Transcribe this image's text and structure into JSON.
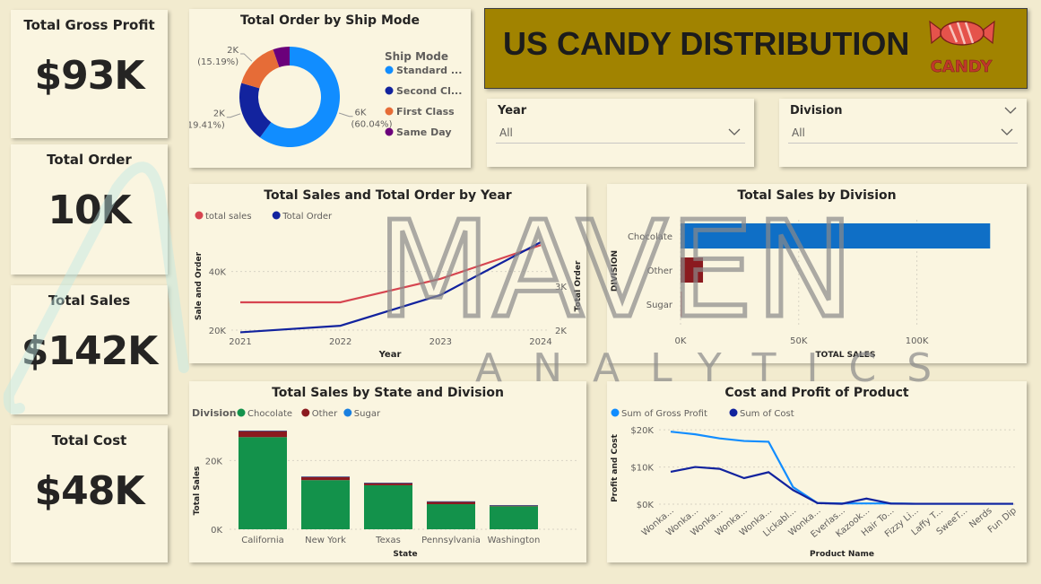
{
  "banner": {
    "title": "US CANDY DISTRIBUTION",
    "logo_text": "CANDY",
    "background": "#a18300"
  },
  "kpis": [
    {
      "title": "Total Gross Profit",
      "value": "$93K"
    },
    {
      "title": "Total Order",
      "value": "10K"
    },
    {
      "title": "Total Sales",
      "value": "$142K"
    },
    {
      "title": "Total Cost",
      "value": "$48K"
    }
  ],
  "slicers": {
    "year": {
      "title": "Year",
      "value": "All"
    },
    "division": {
      "title": "Division",
      "value": "All"
    }
  },
  "watermark": {
    "word1": "MAVEN",
    "word2": "ANALYTICS"
  },
  "colors": {
    "standard": "#118dff",
    "second": "#12239e",
    "first": "#e66c37",
    "sameday": "#6b007b",
    "sales_line": "#d64550",
    "order_line": "#12239e",
    "chocolate": "#13924b",
    "other": "#8b1a1f",
    "sugar": "#1a80e0",
    "gross_profit": "#118dff",
    "cost": "#12239e"
  },
  "chart_data": [
    {
      "id": "ship_mode",
      "type": "pie",
      "donut": true,
      "title": "Total Order by Ship Mode",
      "legend_title": "Ship Mode",
      "legend_position": "right",
      "slices": [
        {
          "name": "Standard ...",
          "value": 6000,
          "percent": 60.04,
          "label": "6K",
          "pct_label": "(60.04%)"
        },
        {
          "name": "Second Cl...",
          "value": 2000,
          "percent": 19.41,
          "label": "2K",
          "pct_label": "(19.41%)"
        },
        {
          "name": "First Class",
          "value": 1500,
          "percent": 15.19,
          "label": "2K",
          "pct_label": "(15.19%)"
        },
        {
          "name": "Same Day",
          "value": 500,
          "percent": 5.36,
          "label": "",
          "pct_label": ""
        }
      ]
    },
    {
      "id": "sales_order_year",
      "type": "line",
      "title": "Total Sales and Total Order by Year",
      "xlabel": "Year",
      "ylabel": "Sale and Order",
      "y2label": "Total Order",
      "legend_position": "top-left",
      "x": [
        "2021",
        "2022",
        "2023",
        "2024"
      ],
      "series": [
        {
          "name": "total sales",
          "axis": "left",
          "values": [
            29500,
            29500,
            37500,
            49000
          ]
        },
        {
          "name": "Total Order",
          "axis": "right",
          "values": [
            1950,
            2100,
            2800,
            4000
          ]
        }
      ],
      "y_ticks": [
        {
          "value": 20000,
          "label": "20K"
        },
        {
          "value": 40000,
          "label": "40K"
        }
      ],
      "y2_ticks": [
        {
          "value": 2000,
          "label": "2K"
        },
        {
          "value": 3000,
          "label": "3K"
        }
      ],
      "ylim": [
        20000,
        50000
      ],
      "y2lim": [
        2000,
        4000
      ]
    },
    {
      "id": "sales_division",
      "type": "bar",
      "orientation": "horizontal",
      "title": "Total Sales by Division",
      "xlabel": "TOTAL SALES",
      "ylabel": "DIVISION",
      "categories": [
        "Chocolate",
        "Other",
        "Sugar"
      ],
      "values": [
        131000,
        9500,
        300
      ],
      "x_ticks": [
        {
          "value": 0,
          "label": "0K"
        },
        {
          "value": 50000,
          "label": "50K"
        },
        {
          "value": 100000,
          "label": "100K"
        }
      ],
      "xlim": [
        0,
        140000
      ]
    },
    {
      "id": "sales_state_division",
      "type": "bar",
      "stacked": true,
      "title": "Total Sales by State and Division",
      "legend_title": "Division",
      "legend_position": "top-left",
      "xlabel": "State",
      "ylabel": "Total Sales",
      "categories": [
        "California",
        "New York",
        "Texas",
        "Pennsylvania",
        "Washington"
      ],
      "series": [
        {
          "name": "Chocolate",
          "values": [
            26800,
            14300,
            12800,
            7300,
            6700
          ]
        },
        {
          "name": "Other",
          "values": [
            1800,
            1000,
            700,
            800,
            300
          ]
        },
        {
          "name": "Sugar",
          "values": [
            100,
            50,
            50,
            40,
            30
          ]
        }
      ],
      "y_ticks": [
        {
          "value": 0,
          "label": "0K"
        },
        {
          "value": 20000,
          "label": "20K"
        }
      ],
      "ylim": [
        0,
        30000
      ]
    },
    {
      "id": "cost_profit_product",
      "type": "line",
      "title": "Cost and Profit of Product",
      "xlabel": "Product Name",
      "ylabel": "Profit and Cost",
      "legend_position": "top-left",
      "x": [
        "Wonka...",
        "Wonka...",
        "Wonka...",
        "Wonka...",
        "Wonka...",
        "Lickabl...",
        "Wonka...",
        "Everlas...",
        "Kazook...",
        "Hair To...",
        "Fizzy Li...",
        "Laffy T...",
        "SweeT...",
        "Nerds",
        "Fun Dip"
      ],
      "series": [
        {
          "name": "Sum of Gross Profit",
          "values": [
            19500,
            18800,
            17700,
            17000,
            16800,
            4600,
            300,
            200,
            200,
            200,
            100,
            100,
            100,
            100,
            100
          ]
        },
        {
          "name": "Sum of Cost",
          "values": [
            8700,
            10000,
            9500,
            7000,
            8600,
            3800,
            300,
            100,
            1500,
            150,
            100,
            100,
            100,
            100,
            100
          ]
        }
      ],
      "y_ticks": [
        {
          "value": 0,
          "label": "$0K"
        },
        {
          "value": 10000,
          "label": "$10K"
        },
        {
          "value": 20000,
          "label": "$20K"
        }
      ],
      "ylim": [
        0,
        21000
      ]
    }
  ]
}
